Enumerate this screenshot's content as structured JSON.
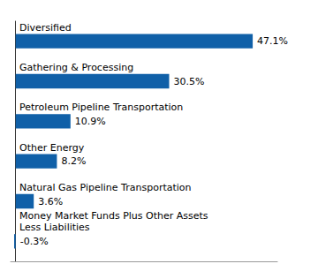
{
  "chart_data": {
    "type": "bar",
    "orientation": "horizontal",
    "categories": [
      "Diversified",
      "Gathering & Processing",
      "Petroleum Pipeline Transportation",
      "Other Energy",
      "Natural Gas Pipeline Transportation",
      "Money Market Funds Plus Other Assets\nLess Liabilities"
    ],
    "values": [
      47.1,
      30.5,
      10.9,
      8.2,
      3.6,
      -0.3
    ],
    "value_labels": [
      "47.1%",
      "30.5%",
      "10.9%",
      "8.2%",
      "3.6%",
      "-0.3%"
    ],
    "color": "#1060a8",
    "xlim": [
      -1,
      52
    ],
    "grid": false,
    "data_labels": true,
    "tick_labels": "y"
  }
}
